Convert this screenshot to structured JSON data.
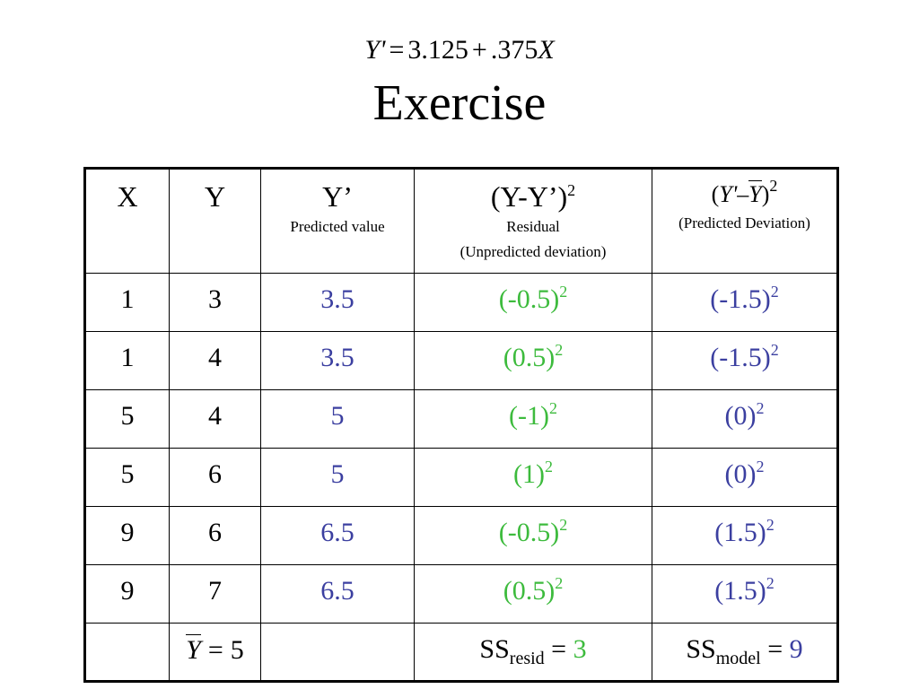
{
  "equation": {
    "lhs": "Y'",
    "equals": "=",
    "intercept": "3.125",
    "plus": "+",
    "slope": ".375",
    "x_var": "X"
  },
  "title": "Exercise",
  "colors": {
    "predicted": "#3b3fa0",
    "residual": "#3dbb3d",
    "model": "#3b3fa0"
  },
  "table": {
    "headers": {
      "x": "X",
      "y": "Y",
      "predicted_main": "Y’",
      "predicted_sub": "Predicted value",
      "resid_main": "(Y-Y’)",
      "resid_exp": "2",
      "resid_sub1": "Residual",
      "resid_sub2": "(Unpredicted deviation)",
      "model_open": "(",
      "model_lhs": "Y'",
      "model_minus": "–",
      "model_bar": "Y",
      "model_close": ")",
      "model_exp": "2",
      "model_sub": "(Predicted Deviation)"
    },
    "rows": [
      {
        "x": "1",
        "y": "3",
        "pred": "3.5",
        "resid": "(-0.5)",
        "resid_exp": "2",
        "model": "(-1.5)",
        "model_exp": "2"
      },
      {
        "x": "1",
        "y": "4",
        "pred": "3.5",
        "resid": "(0.5)",
        "resid_exp": "2",
        "model": "(-1.5)",
        "model_exp": "2"
      },
      {
        "x": "5",
        "y": "4",
        "pred": "5",
        "resid": "(-1)",
        "resid_exp": "2",
        "model": "(0)",
        "model_exp": "2"
      },
      {
        "x": "5",
        "y": "6",
        "pred": "5",
        "resid": "(1)",
        "resid_exp": "2",
        "model": "(0)",
        "model_exp": "2"
      },
      {
        "x": "9",
        "y": "6",
        "pred": "6.5",
        "resid": "(-0.5)",
        "resid_exp": "2",
        "model": "(1.5)",
        "model_exp": "2"
      },
      {
        "x": "9",
        "y": "7",
        "pred": "6.5",
        "resid": "(0.5)",
        "resid_exp": "2",
        "model": "(1.5)",
        "model_exp": "2"
      }
    ],
    "summary": {
      "ybar_symbol": "Y",
      "ybar_equals": "=",
      "ybar_value": "5",
      "ss_resid_label": "SS",
      "ss_resid_sub": "resid",
      "ss_resid_equals": "=",
      "ss_resid_value": "3",
      "ss_model_label": "SS",
      "ss_model_sub": "model",
      "ss_model_equals": "=",
      "ss_model_value": "9"
    }
  }
}
